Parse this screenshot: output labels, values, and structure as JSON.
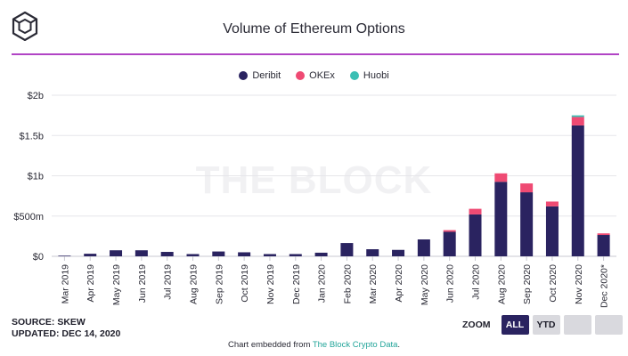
{
  "title": "Volume of Ethereum Options",
  "watermark": "THE BLOCK",
  "source": "SOURCE: SKEW",
  "updated": "UPDATED: DEC 14, 2020",
  "zoom": {
    "label": "ZOOM",
    "all": "ALL",
    "ytd": "YTD"
  },
  "embed": {
    "prefix": "Chart embedded from ",
    "link": "The Block Crypto Data",
    "suffix": "."
  },
  "colors": {
    "Deribit": "#2a2360",
    "OKEx": "#ef4a73",
    "Huobi": "#3bbfb4",
    "accent_rule": "#b144c5"
  },
  "chart_data": {
    "type": "bar",
    "stacked": true,
    "title": "Volume of Ethereum Options",
    "categories": [
      "Mar 2019",
      "Apr 2019",
      "May 2019",
      "Jun 2019",
      "Jul 2019",
      "Aug 2019",
      "Sep 2019",
      "Oct 2019",
      "Nov 2019",
      "Dec 2019",
      "Jan 2020",
      "Feb 2020",
      "Mar 2020",
      "Apr 2020",
      "May 2020",
      "Jun 2020",
      "Jul 2020",
      "Aug 2020",
      "Sep 2020",
      "Oct 2020",
      "Nov 2020",
      "Dec 2020*"
    ],
    "series": [
      {
        "name": "Deribit",
        "values": [
          8,
          32,
          75,
          75,
          55,
          28,
          60,
          50,
          28,
          28,
          45,
          165,
          88,
          80,
          210,
          305,
          520,
          925,
          795,
          620,
          1625,
          265
        ]
      },
      {
        "name": "OKEx",
        "values": [
          0,
          0,
          0,
          0,
          0,
          0,
          0,
          0,
          0,
          0,
          0,
          0,
          0,
          0,
          0,
          20,
          70,
          105,
          110,
          60,
          105,
          20
        ]
      },
      {
        "name": "Huobi",
        "values": [
          0,
          0,
          0,
          0,
          0,
          0,
          0,
          0,
          0,
          0,
          0,
          0,
          0,
          0,
          0,
          0,
          0,
          0,
          0,
          0,
          20,
          0
        ]
      }
    ],
    "ylim": [
      0,
      2000
    ],
    "yticks": [
      0,
      500,
      1000,
      1500,
      2000
    ],
    "ytick_labels": [
      "$0",
      "$500m",
      "$1b",
      "$1.5b",
      "$2b"
    ],
    "units": "millions USD",
    "grid": true,
    "legend_position": "top-center"
  }
}
